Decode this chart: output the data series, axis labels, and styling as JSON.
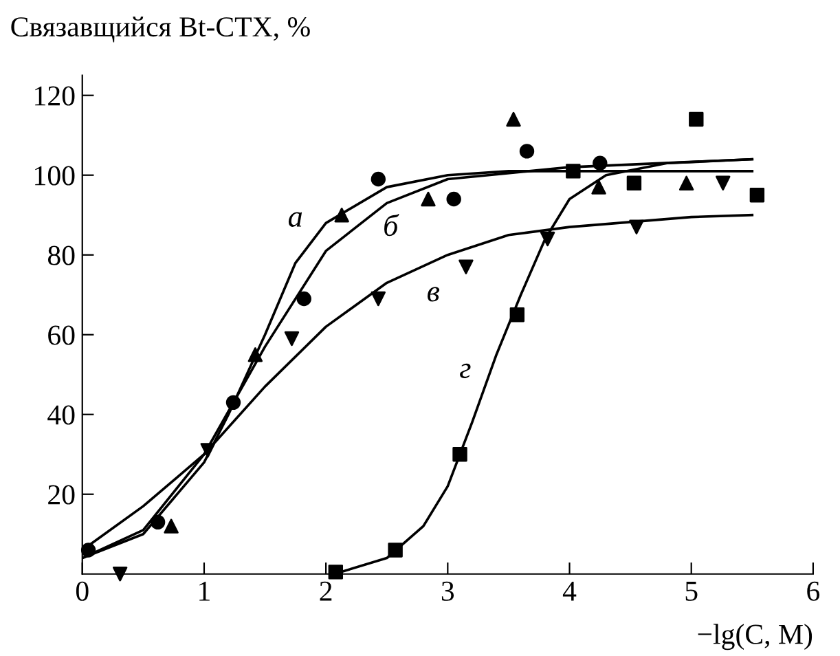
{
  "chart_data": {
    "type": "scatter",
    "ylabel": "Связавщийся Bt-СТХ, %",
    "xlabel": "−lg(C, M)",
    "xlim": [
      0,
      6
    ],
    "ylim": [
      0,
      125
    ],
    "xticks": [
      0,
      1,
      2,
      3,
      4,
      5,
      6
    ],
    "yticks": [
      20,
      40,
      60,
      80,
      100,
      120
    ],
    "grid": false,
    "legend": false,
    "series": [
      {
        "marker": "triangle",
        "color": "#000000",
        "x": [
          0.73,
          1.42,
          2.13,
          2.84,
          3.54,
          4.24,
          4.96
        ],
        "values": [
          12,
          55,
          90,
          94,
          114,
          97,
          98
        ]
      },
      {
        "marker": "circle",
        "color": "#000000",
        "x": [
          0.05,
          0.62,
          1.24,
          1.82,
          2.43,
          3.05,
          3.65,
          4.25
        ],
        "values": [
          6,
          13,
          43,
          69,
          99,
          94,
          106,
          103
        ]
      },
      {
        "marker": "triangle_down",
        "color": "#000000",
        "x": [
          0.31,
          1.03,
          1.72,
          2.43,
          3.15,
          3.82,
          4.55,
          5.26
        ],
        "values": [
          0,
          31,
          59,
          69,
          77,
          84,
          87,
          98
        ]
      },
      {
        "marker": "square",
        "color": "#000000",
        "x": [
          2.08,
          2.57,
          3.1,
          3.57,
          4.03,
          4.53,
          5.04,
          5.54
        ],
        "values": [
          0.5,
          6,
          30,
          65,
          101,
          98,
          114,
          95
        ]
      },
      {
        "type": "line",
        "marker": "none",
        "color": "#000000",
        "x": [
          0,
          0.5,
          1,
          1.2,
          1.5,
          1.75,
          2,
          2.5,
          3,
          3.5,
          4.5,
          5.5
        ],
        "values": [
          4,
          10,
          28,
          40,
          60,
          78,
          88,
          97,
          100,
          101,
          101,
          101
        ]
      },
      {
        "type": "line",
        "marker": "none",
        "color": "#000000",
        "x": [
          0,
          0.5,
          1,
          1.5,
          2,
          2.5,
          3,
          4,
          5.5
        ],
        "values": [
          4,
          11,
          30,
          57,
          81,
          93,
          99,
          102,
          104
        ]
      },
      {
        "type": "line",
        "marker": "none",
        "color": "#000000",
        "x": [
          0,
          0.5,
          1,
          1.5,
          2,
          2.5,
          3,
          3.5,
          4,
          5,
          5.5
        ],
        "values": [
          6,
          17,
          30,
          47,
          62,
          73,
          80,
          85,
          87,
          89.5,
          90
        ]
      },
      {
        "type": "line",
        "marker": "none",
        "color": "#000000",
        "x": [
          2.1,
          2.5,
          2.8,
          3,
          3.2,
          3.4,
          3.6,
          3.8,
          4,
          4.3,
          4.8,
          5.5
        ],
        "values": [
          0.3,
          4,
          12,
          22,
          38,
          55,
          70,
          84,
          94,
          100,
          103,
          104
        ]
      }
    ],
    "annotations": [
      {
        "text": "а",
        "x": 2.0,
        "y": 88
      },
      {
        "text": "б",
        "x": 2.5,
        "y": 93
      },
      {
        "text": "в",
        "x": 2.85,
        "y": 78
      },
      {
        "text": "г",
        "x": 3.35,
        "y": 51
      }
    ]
  }
}
